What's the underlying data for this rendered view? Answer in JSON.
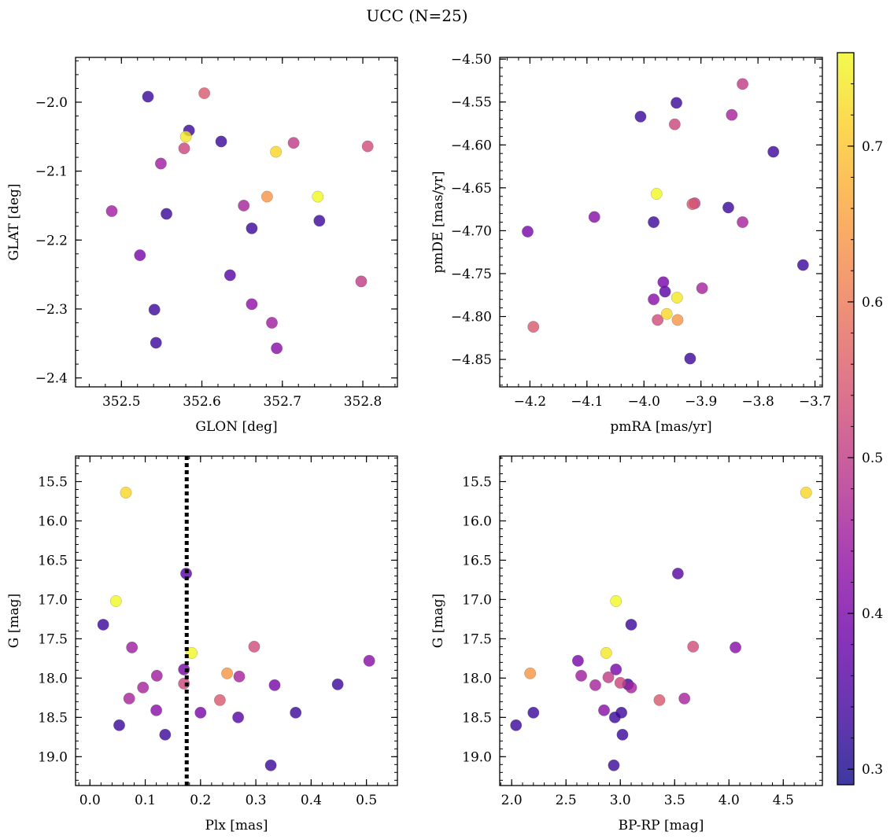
{
  "figure": {
    "title": "UCC (N=25)"
  },
  "chart_data": [
    {
      "type": "scatter",
      "xlabel": "GLON [deg]",
      "ylabel": "GLAT [deg]",
      "xlim": [
        352.443,
        352.843
      ],
      "ylim": [
        -2.413,
        -1.935
      ],
      "xticks": [
        352.5,
        352.6,
        352.7,
        352.8
      ],
      "xtick_labels": [
        "352.5",
        "352.6",
        "352.7",
        "352.8"
      ],
      "yticks": [
        -2.4,
        -2.3,
        -2.2,
        -2.1,
        -2.0
      ],
      "ytick_labels": [
        "−2.4",
        "−2.3",
        "−2.2",
        "−2.1",
        "−2.0"
      ],
      "x": [
        352.533,
        352.603,
        352.584,
        352.624,
        352.58,
        352.578,
        352.692,
        352.714,
        352.806,
        352.549,
        352.681,
        352.744,
        352.488,
        352.556,
        352.652,
        352.662,
        352.746,
        352.523,
        352.635,
        352.541,
        352.662,
        352.798,
        352.543,
        352.687,
        352.693
      ],
      "y": [
        -1.992,
        -1.987,
        -2.041,
        -2.057,
        -2.05,
        -2.067,
        -2.072,
        -2.059,
        -2.064,
        -2.089,
        -2.137,
        -2.137,
        -2.158,
        -2.162,
        -2.15,
        -2.183,
        -2.172,
        -2.222,
        -2.251,
        -2.301,
        -2.293,
        -2.26,
        -2.349,
        -2.32,
        -2.357
      ],
      "color_values": [
        0.33,
        0.55,
        0.33,
        0.33,
        0.74,
        0.52,
        0.72,
        0.5,
        0.53,
        0.45,
        0.64,
        0.76,
        0.45,
        0.33,
        0.46,
        0.33,
        0.33,
        0.4,
        0.36,
        0.33,
        0.43,
        0.5,
        0.33,
        0.45,
        0.42
      ]
    },
    {
      "type": "scatter",
      "xlabel": "pmRA [mas/yr]",
      "ylabel": "pmDE [mas/yr]",
      "xlim": [
        -4.253,
        -3.687
      ],
      "ylim": [
        -4.882,
        -4.498
      ],
      "xticks": [
        -4.2,
        -4.1,
        -4.0,
        -3.9,
        -3.8,
        -3.7
      ],
      "xtick_labels": [
        "−4.2",
        "−4.1",
        "−4.0",
        "−3.9",
        "−3.8",
        "−3.7"
      ],
      "yticks": [
        -4.85,
        -4.8,
        -4.75,
        -4.7,
        -4.65,
        -4.6,
        -4.55,
        -4.5
      ],
      "ytick_labels": [
        "−4.85",
        "−4.80",
        "−4.75",
        "−4.70",
        "−4.65",
        "−4.60",
        "−4.55",
        "−4.50"
      ],
      "x": [
        -3.827,
        -3.943,
        -4.006,
        -3.946,
        -3.846,
        -3.773,
        -3.978,
        -3.852,
        -3.915,
        -3.911,
        -4.087,
        -4.204,
        -3.983,
        -3.827,
        -3.721,
        -3.966,
        -3.963,
        -3.898,
        -3.983,
        -3.942,
        -3.976,
        -3.96,
        -3.941,
        -4.194,
        -3.919
      ],
      "y": [
        -4.529,
        -4.551,
        -4.567,
        -4.576,
        -4.565,
        -4.608,
        -4.657,
        -4.673,
        -4.669,
        -4.668,
        -4.684,
        -4.701,
        -4.69,
        -4.69,
        -4.74,
        -4.76,
        -4.771,
        -4.767,
        -4.78,
        -4.778,
        -4.804,
        -4.797,
        -4.804,
        -4.812,
        -4.849
      ],
      "color_values": [
        0.5,
        0.33,
        0.33,
        0.52,
        0.46,
        0.33,
        0.76,
        0.33,
        0.55,
        0.5,
        0.42,
        0.4,
        0.33,
        0.46,
        0.33,
        0.4,
        0.36,
        0.46,
        0.42,
        0.74,
        0.53,
        0.72,
        0.64,
        0.55,
        0.33
      ]
    },
    {
      "type": "scatter",
      "xlabel": "Plx [mas]",
      "ylabel": "G [mag]",
      "xlim": [
        -0.026,
        0.556
      ],
      "ylim": [
        19.367,
        15.175
      ],
      "xticks": [
        0.0,
        0.1,
        0.2,
        0.3,
        0.4,
        0.5
      ],
      "xtick_labels": [
        "0.0",
        "0.1",
        "0.2",
        "0.3",
        "0.4",
        "0.5"
      ],
      "yticks": [
        15.5,
        16.0,
        16.5,
        17.0,
        17.5,
        18.0,
        18.5,
        19.0
      ],
      "ytick_labels": [
        "15.5",
        "16.0",
        "16.5",
        "17.0",
        "17.5",
        "18.0",
        "18.5",
        "19.0"
      ],
      "vline": {
        "x": 0.175,
        "style": "dotted"
      },
      "x": [
        0.065,
        0.174,
        0.047,
        0.024,
        0.076,
        0.184,
        0.297,
        0.505,
        0.17,
        0.121,
        0.248,
        0.27,
        0.096,
        0.17,
        0.334,
        0.448,
        0.071,
        0.235,
        0.12,
        0.2,
        0.268,
        0.372,
        0.053,
        0.136,
        0.327
      ],
      "y": [
        15.64,
        16.67,
        17.02,
        17.32,
        17.61,
        17.68,
        17.6,
        17.78,
        17.89,
        17.97,
        17.94,
        17.98,
        18.12,
        18.07,
        18.09,
        18.08,
        18.26,
        18.28,
        18.41,
        18.44,
        18.5,
        18.44,
        18.6,
        18.72,
        19.11
      ],
      "color_values": [
        0.72,
        0.36,
        0.76,
        0.33,
        0.45,
        0.76,
        0.53,
        0.42,
        0.4,
        0.45,
        0.64,
        0.46,
        0.46,
        0.52,
        0.4,
        0.33,
        0.46,
        0.55,
        0.42,
        0.4,
        0.36,
        0.33,
        0.33,
        0.33,
        0.33
      ]
    },
    {
      "type": "scatter",
      "xlabel": "BP-RP [mag]",
      "ylabel": "G [mag]",
      "xlim": [
        1.89,
        4.86
      ],
      "ylim": [
        19.367,
        15.175
      ],
      "xticks": [
        2.0,
        2.5,
        3.0,
        3.5,
        4.0,
        4.5
      ],
      "xtick_labels": [
        "2.0",
        "2.5",
        "3.0",
        "3.5",
        "4.0",
        "4.5"
      ],
      "yticks": [
        15.5,
        16.0,
        16.5,
        17.0,
        17.5,
        18.0,
        18.5,
        19.0
      ],
      "ytick_labels": [
        "15.5",
        "16.0",
        "16.5",
        "17.0",
        "17.5",
        "18.0",
        "18.5",
        "19.0"
      ],
      "x": [
        4.71,
        3.53,
        2.96,
        3.1,
        3.67,
        4.06,
        2.87,
        2.61,
        2.96,
        2.64,
        2.17,
        2.89,
        3.1,
        3.0,
        3.07,
        2.77,
        3.59,
        3.36,
        2.85,
        3.01,
        2.95,
        2.2,
        2.04,
        3.02,
        2.94
      ],
      "y": [
        15.64,
        16.67,
        17.02,
        17.32,
        17.6,
        17.61,
        17.68,
        17.78,
        17.89,
        17.97,
        17.94,
        17.99,
        18.12,
        18.06,
        18.08,
        18.09,
        18.26,
        18.28,
        18.41,
        18.44,
        18.5,
        18.44,
        18.6,
        18.72,
        19.11
      ],
      "color_values": [
        0.72,
        0.36,
        0.76,
        0.33,
        0.53,
        0.42,
        0.74,
        0.4,
        0.4,
        0.45,
        0.64,
        0.5,
        0.46,
        0.52,
        0.33,
        0.46,
        0.46,
        0.55,
        0.42,
        0.33,
        0.33,
        0.33,
        0.33,
        0.33,
        0.33
      ]
    }
  ],
  "colorbar": {
    "colormap": "plasma",
    "alpha": 0.8,
    "range": [
      0.29,
      0.76
    ],
    "ticks": [
      0.3,
      0.4,
      0.5,
      0.6,
      0.7
    ],
    "tick_labels": [
      "0.3",
      "0.4",
      "0.5",
      "0.6",
      "0.7"
    ]
  }
}
